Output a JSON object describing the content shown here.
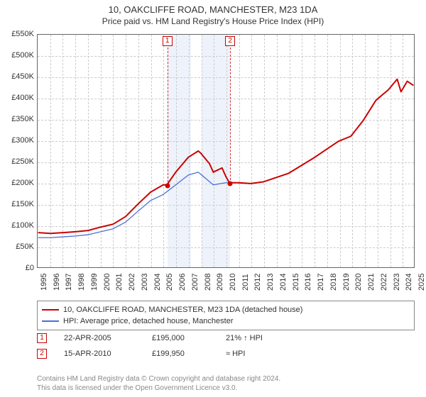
{
  "title": "10, OAKCLIFFE ROAD, MANCHESTER, M23 1DA",
  "subtitle": "Price paid vs. HM Land Registry's House Price Index (HPI)",
  "chart": {
    "type": "line",
    "x_years": [
      1995,
      1996,
      1997,
      1998,
      1999,
      2000,
      2001,
      2002,
      2003,
      2004,
      2005,
      2006,
      2007,
      2008,
      2009,
      2010,
      2011,
      2012,
      2013,
      2014,
      2015,
      2016,
      2017,
      2018,
      2019,
      2020,
      2021,
      2022,
      2023,
      2024,
      2025
    ],
    "ylim": [
      0,
      550000
    ],
    "ytick_step": 50000,
    "ytick_labels": [
      "£0",
      "£50K",
      "£100K",
      "£150K",
      "£200K",
      "£250K",
      "£300K",
      "£350K",
      "£400K",
      "£450K",
      "£500K",
      "£550K"
    ],
    "background_color": "#ffffff",
    "grid_color": "#cccccc",
    "axis_color": "#666666",
    "shaded_bands": [
      {
        "from_year": 2005.3,
        "to_year": 2007.2,
        "color": "#eef2fa"
      },
      {
        "from_year": 2008.0,
        "to_year": 2010.3,
        "color": "#eef2fa"
      }
    ],
    "series": [
      {
        "name": "property",
        "label": "10, OAKCLIFFE ROAD, MANCHESTER, M23 1DA (detached house)",
        "color": "#cc0000",
        "width": 2,
        "points": [
          [
            1995,
            82000
          ],
          [
            1996,
            80000
          ],
          [
            1997,
            82000
          ],
          [
            1998,
            84000
          ],
          [
            1999,
            87000
          ],
          [
            2000,
            95000
          ],
          [
            2001,
            102000
          ],
          [
            2002,
            120000
          ],
          [
            2003,
            150000
          ],
          [
            2004,
            178000
          ],
          [
            2005,
            195000
          ],
          [
            2005.3,
            195000
          ],
          [
            2006,
            225000
          ],
          [
            2007,
            260000
          ],
          [
            2007.8,
            275000
          ],
          [
            2008,
            270000
          ],
          [
            2008.7,
            245000
          ],
          [
            2009,
            225000
          ],
          [
            2009.7,
            235000
          ],
          [
            2010,
            215000
          ],
          [
            2010.29,
            199950
          ],
          [
            2010.5,
            200000
          ],
          [
            2011,
            200000
          ],
          [
            2012,
            198000
          ],
          [
            2013,
            202000
          ],
          [
            2014,
            212000
          ],
          [
            2015,
            222000
          ],
          [
            2016,
            240000
          ],
          [
            2017,
            258000
          ],
          [
            2018,
            278000
          ],
          [
            2019,
            298000
          ],
          [
            2020,
            310000
          ],
          [
            2021,
            348000
          ],
          [
            2022,
            395000
          ],
          [
            2023,
            420000
          ],
          [
            2023.7,
            445000
          ],
          [
            2024,
            415000
          ],
          [
            2024.5,
            440000
          ],
          [
            2025,
            430000
          ]
        ]
      },
      {
        "name": "hpi",
        "label": "HPI: Average price, detached house, Manchester",
        "color": "#4a6fd4",
        "width": 1.3,
        "points": [
          [
            1995,
            70000
          ],
          [
            1996,
            70000
          ],
          [
            1997,
            72000
          ],
          [
            1998,
            74000
          ],
          [
            1999,
            77000
          ],
          [
            2000,
            84000
          ],
          [
            2001,
            91000
          ],
          [
            2002,
            107000
          ],
          [
            2003,
            133000
          ],
          [
            2004,
            158000
          ],
          [
            2005,
            172000
          ],
          [
            2006,
            195000
          ],
          [
            2007,
            218000
          ],
          [
            2007.8,
            225000
          ],
          [
            2008,
            220000
          ],
          [
            2009,
            195000
          ],
          [
            2010,
            200000
          ],
          [
            2010.29,
            199950
          ]
        ]
      }
    ],
    "sale_markers": [
      {
        "n": "1",
        "year": 2005.3,
        "price": 195000
      },
      {
        "n": "2",
        "year": 2010.29,
        "price": 199950
      }
    ]
  },
  "legend": {
    "items": [
      {
        "color": "#cc0000",
        "label_path": "chart.series.0.label"
      },
      {
        "color": "#4a6fd4",
        "label_path": "chart.series.1.label"
      }
    ]
  },
  "sales": [
    {
      "n": "1",
      "date": "22-APR-2005",
      "price": "£195,000",
      "rel": "21% ↑ HPI"
    },
    {
      "n": "2",
      "date": "15-APR-2010",
      "price": "£199,950",
      "rel": "≈ HPI"
    }
  ],
  "footer_line1": "Contains HM Land Registry data © Crown copyright and database right 2024.",
  "footer_line2": "This data is licensed under the Open Government Licence v3.0.",
  "fonts": {
    "title": 13,
    "subtitle": 12,
    "tick": 11,
    "legend": 11,
    "footer": 10
  }
}
